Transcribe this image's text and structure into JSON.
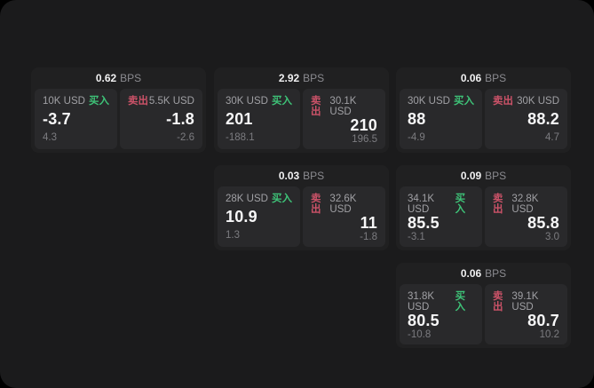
{
  "labels": {
    "buy": "买入",
    "sell": "卖出",
    "bps_unit": "BPS"
  },
  "colors": {
    "buy_accent": "#3ec378",
    "sell_accent": "#cb5268",
    "panel_bg": "#1b1b1c",
    "card_bg": "#202021",
    "tile_bg": "#29292b"
  },
  "cards": [
    {
      "bps": "0.62",
      "buy": {
        "amount": "10K USD",
        "value": "-3.7",
        "change": "4.3"
      },
      "sell": {
        "amount": "5.5K USD",
        "value": "-1.8",
        "change": "-2.6"
      }
    },
    {
      "bps": "2.92",
      "buy": {
        "amount": "30K USD",
        "value": "201",
        "change": "-188.1"
      },
      "sell": {
        "amount": "30.1K USD",
        "value": "210",
        "change": "196.5"
      }
    },
    {
      "bps": "0.06",
      "buy": {
        "amount": "30K USD",
        "value": "88",
        "change": "-4.9"
      },
      "sell": {
        "amount": "30K USD",
        "value": "88.2",
        "change": "4.7"
      }
    },
    {
      "bps": "0.03",
      "buy": {
        "amount": "28K USD",
        "value": "10.9",
        "change": "1.3"
      },
      "sell": {
        "amount": "32.6K USD",
        "value": "11",
        "change": "-1.8"
      }
    },
    {
      "bps": "0.09",
      "buy": {
        "amount": "34.1K USD",
        "value": "85.5",
        "change": "-3.1"
      },
      "sell": {
        "amount": "32.8K USD",
        "value": "85.8",
        "change": "3.0"
      }
    },
    {
      "bps": "0.06",
      "buy": {
        "amount": "31.8K USD",
        "value": "80.5",
        "change": "-10.8"
      },
      "sell": {
        "amount": "39.1K USD",
        "value": "80.7",
        "change": "10.2"
      }
    }
  ]
}
